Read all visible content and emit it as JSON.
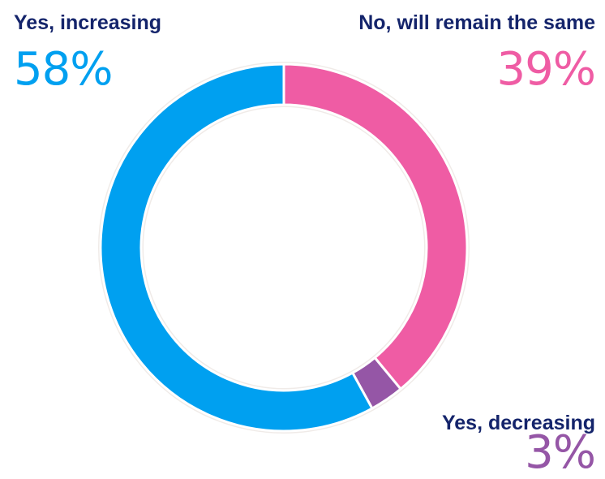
{
  "chart_data": {
    "type": "pie",
    "style": "donut",
    "title": "",
    "categories": [
      "Yes, increasing",
      "No, will remain the same",
      "Yes, decreasing"
    ],
    "values": [
      58,
      39,
      3
    ],
    "value_labels": [
      "58%",
      "39%",
      "3%"
    ],
    "colors": [
      "#00a0f0",
      "#ef5ca4",
      "#9556a6"
    ],
    "start_angle_deg": 0,
    "direction": "clockwise",
    "legend": "none"
  },
  "colors": {
    "label_text": "#14246b",
    "ring_outline": "#f0ebe8"
  }
}
